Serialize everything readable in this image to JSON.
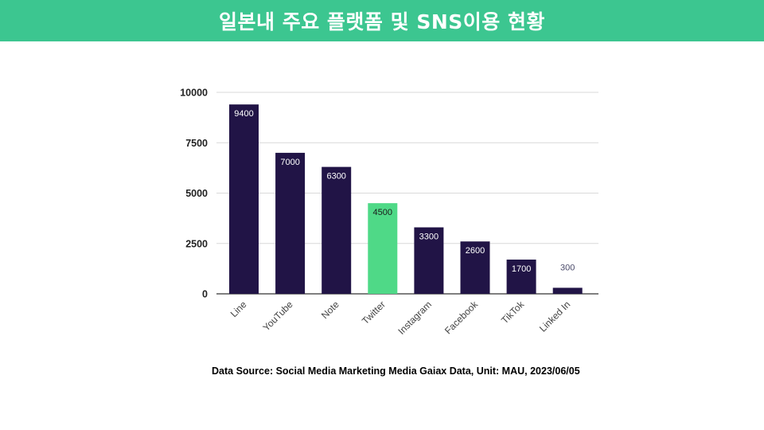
{
  "header": {
    "title": "일본내 주요 플랫폼 및 SNS이용 현황"
  },
  "footer": {
    "source": "Data Source: Social Media Marketing Media Gaiax Data, Unit: MAU, 2023/06/05"
  },
  "colors": {
    "header_bg": "#3cc690",
    "bar": "#211446",
    "highlight": "#4fd987"
  },
  "chart_data": {
    "type": "bar",
    "categories": [
      "Line",
      "YouTube",
      "Note",
      "Twitter",
      "Instagram",
      "Facebook",
      "TikTok",
      "Linked In"
    ],
    "values": [
      9400,
      7000,
      6300,
      4500,
      3300,
      2600,
      1700,
      300
    ],
    "highlight_category": "Twitter",
    "ylim": [
      0,
      10000
    ],
    "yticks": [
      0,
      2500,
      5000,
      7500,
      10000
    ],
    "grid": true,
    "xlabel": "",
    "ylabel": "",
    "title": ""
  }
}
